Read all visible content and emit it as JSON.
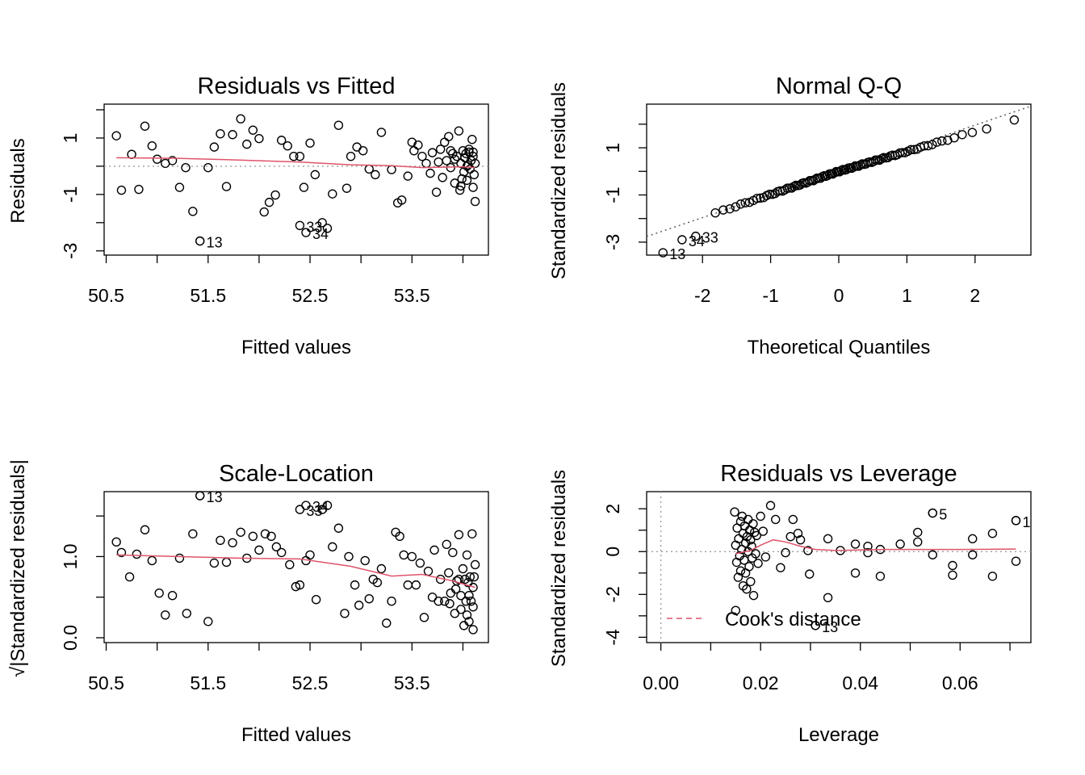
{
  "chart_data": [
    {
      "type": "scatter",
      "title": "Residuals vs Fitted",
      "xlabel": "Fitted values",
      "ylabel": "Residuals",
      "xlim": [
        50.48,
        54.25
      ],
      "ylim": [
        -3.15,
        2.2
      ],
      "x_ticks": [
        50.5,
        51.5,
        52.5,
        53.5
      ],
      "x_tick_labels": [
        "50.5",
        "51.5",
        "52.5",
        "53.5"
      ],
      "y_ticks": [
        -3,
        -1,
        1
      ],
      "y_tick_labels": [
        "-3",
        "-1",
        "1"
      ],
      "x_minor_ticks": [
        51.0,
        52.0,
        53.0,
        54.0
      ],
      "y_minor_ticks": [
        -2,
        0,
        2
      ],
      "reference_line": {
        "y": 0
      },
      "points": [
        [
          50.6,
          1.08
        ],
        [
          50.65,
          -0.85
        ],
        [
          50.75,
          0.42
        ],
        [
          50.82,
          -0.82
        ],
        [
          50.88,
          1.42
        ],
        [
          50.95,
          0.72
        ],
        [
          51.0,
          0.25
        ],
        [
          51.08,
          0.1
        ],
        [
          51.15,
          0.2
        ],
        [
          51.22,
          -0.75
        ],
        [
          51.28,
          -0.05
        ],
        [
          51.35,
          -1.6
        ],
        [
          51.42,
          -2.65
        ],
        [
          51.5,
          -0.05
        ],
        [
          51.56,
          0.68
        ],
        [
          51.62,
          1.15
        ],
        [
          51.68,
          -0.72
        ],
        [
          51.74,
          1.12
        ],
        [
          51.82,
          1.68
        ],
        [
          51.88,
          0.78
        ],
        [
          51.94,
          1.28
        ],
        [
          52.0,
          0.98
        ],
        [
          52.05,
          -1.62
        ],
        [
          52.1,
          -1.28
        ],
        [
          52.16,
          -1.02
        ],
        [
          52.22,
          0.92
        ],
        [
          52.28,
          0.72
        ],
        [
          52.34,
          0.35
        ],
        [
          52.4,
          0.35
        ],
        [
          52.44,
          -0.75
        ],
        [
          52.5,
          0.82
        ],
        [
          52.55,
          -0.3
        ],
        [
          52.62,
          -2.0
        ],
        [
          52.67,
          -2.2
        ],
        [
          52.72,
          -0.98
        ],
        [
          52.78,
          1.45
        ],
        [
          52.86,
          -0.78
        ],
        [
          52.9,
          0.35
        ],
        [
          52.96,
          0.68
        ],
        [
          53.02,
          0.55
        ],
        [
          53.08,
          -0.1
        ],
        [
          53.14,
          -0.3
        ],
        [
          53.2,
          1.2
        ],
        [
          53.3,
          -0.12
        ],
        [
          53.36,
          -1.3
        ],
        [
          53.4,
          -1.2
        ],
        [
          53.46,
          -0.35
        ],
        [
          53.5,
          0.85
        ],
        [
          53.52,
          0.55
        ],
        [
          53.56,
          0.75
        ],
        [
          53.6,
          0.35
        ],
        [
          53.64,
          0.1
        ],
        [
          53.68,
          -0.25
        ],
        [
          53.7,
          0.48
        ],
        [
          53.74,
          -0.92
        ],
        [
          53.76,
          0.15
        ],
        [
          53.78,
          0.6
        ],
        [
          53.8,
          -0.4
        ],
        [
          53.82,
          0.85
        ],
        [
          53.84,
          0.2
        ],
        [
          53.86,
          1.05
        ],
        [
          53.88,
          -0.05
        ],
        [
          53.9,
          0.45
        ],
        [
          53.92,
          -0.6
        ],
        [
          53.94,
          0.35
        ],
        [
          53.96,
          1.25
        ],
        [
          53.97,
          -0.85
        ],
        [
          53.98,
          0.1
        ],
        [
          54.0,
          0.55
        ],
        [
          54.01,
          -0.2
        ],
        [
          54.02,
          0.3
        ],
        [
          54.03,
          0.45
        ],
        [
          54.04,
          -0.5
        ],
        [
          54.05,
          0.05
        ],
        [
          54.06,
          0.5
        ],
        [
          54.07,
          -0.1
        ],
        [
          54.08,
          0.2
        ],
        [
          54.09,
          0.95
        ],
        [
          54.1,
          -0.75
        ],
        [
          54.1,
          0.35
        ],
        [
          54.11,
          -0.3
        ],
        [
          54.12,
          0.1
        ],
        [
          54.12,
          -1.25
        ],
        [
          53.98,
          -0.7
        ],
        [
          54.06,
          0.6
        ],
        [
          53.92,
          0.25
        ],
        [
          54.04,
          0.0
        ],
        [
          53.88,
          0.55
        ],
        [
          54.1,
          0.5
        ],
        [
          53.99,
          -0.45
        ]
      ],
      "labeled_points": [
        {
          "label": "13",
          "x": 51.42,
          "y": -2.65
        },
        {
          "label": "33",
          "x": 52.4,
          "y": -2.1
        },
        {
          "label": "34",
          "x": 52.46,
          "y": -2.35
        }
      ],
      "smooth_line": [
        [
          50.6,
          0.3
        ],
        [
          51.2,
          0.28
        ],
        [
          51.8,
          0.22
        ],
        [
          52.4,
          0.15
        ],
        [
          52.9,
          0.05
        ],
        [
          53.3,
          0.02
        ],
        [
          53.6,
          -0.05
        ],
        [
          54.0,
          -0.02
        ],
        [
          54.12,
          -0.05
        ]
      ]
    },
    {
      "type": "scatter",
      "title": "Normal Q-Q",
      "xlabel": "Theoretical Quantiles",
      "ylabel": "Standardized residuals",
      "xlim": [
        -2.82,
        2.82
      ],
      "ylim": [
        -3.55,
        2.85
      ],
      "x_ticks": [
        -2,
        -1,
        0,
        1,
        2
      ],
      "x_tick_labels": [
        "-2",
        "-1",
        "0",
        "1",
        "2"
      ],
      "y_ticks": [
        -3,
        -1,
        1
      ],
      "y_tick_labels": [
        "-3",
        "-1",
        "1"
      ],
      "y_minor_ticks": [
        -2,
        0,
        2
      ],
      "reference_line": {
        "intercept": 0.0,
        "slope": 0.98
      },
      "n_points": 100,
      "labeled_points": [
        {
          "label": "13",
          "x": -2.58,
          "y": -3.45
        },
        {
          "label": "34",
          "x": -2.3,
          "y": -2.9
        },
        {
          "label": "33",
          "x": -2.1,
          "y": -2.75
        }
      ]
    },
    {
      "type": "scatter",
      "title": "Scale-Location",
      "xlabel": "Fitted values",
      "ylabel": "√|Standardized residuals|",
      "xlim": [
        50.48,
        54.25
      ],
      "ylim": [
        -0.06,
        1.8
      ],
      "x_ticks": [
        50.5,
        51.5,
        52.5,
        53.5
      ],
      "x_tick_labels": [
        "50.5",
        "51.5",
        "52.5",
        "53.5"
      ],
      "y_ticks": [
        0.0,
        1.0
      ],
      "y_tick_labels": [
        "0.0",
        "1.0"
      ],
      "x_minor_ticks": [
        51.0,
        52.0,
        53.0,
        54.0
      ],
      "y_minor_ticks": [
        0.5,
        1.5
      ],
      "points": [
        [
          50.6,
          1.18
        ],
        [
          50.65,
          1.05
        ],
        [
          50.73,
          0.75
        ],
        [
          50.8,
          1.03
        ],
        [
          50.88,
          1.33
        ],
        [
          50.95,
          0.95
        ],
        [
          51.02,
          0.55
        ],
        [
          51.08,
          0.28
        ],
        [
          51.15,
          0.52
        ],
        [
          51.22,
          0.98
        ],
        [
          51.29,
          0.3
        ],
        [
          51.35,
          1.28
        ],
        [
          51.42,
          1.75
        ],
        [
          51.5,
          0.2
        ],
        [
          51.56,
          0.92
        ],
        [
          51.62,
          1.2
        ],
        [
          51.68,
          0.93
        ],
        [
          51.74,
          1.17
        ],
        [
          51.82,
          1.3
        ],
        [
          51.88,
          0.98
        ],
        [
          51.94,
          1.25
        ],
        [
          52.0,
          1.08
        ],
        [
          52.06,
          1.28
        ],
        [
          52.12,
          1.25
        ],
        [
          52.17,
          1.12
        ],
        [
          52.22,
          1.05
        ],
        [
          52.3,
          0.9
        ],
        [
          52.36,
          0.63
        ],
        [
          52.4,
          0.65
        ],
        [
          52.46,
          0.95
        ],
        [
          52.5,
          1.02
        ],
        [
          52.56,
          0.47
        ],
        [
          52.62,
          1.58
        ],
        [
          52.67,
          1.63
        ],
        [
          52.72,
          1.12
        ],
        [
          52.78,
          1.35
        ],
        [
          52.84,
          0.3
        ],
        [
          52.88,
          1.0
        ],
        [
          52.94,
          0.65
        ],
        [
          52.98,
          0.4
        ],
        [
          53.04,
          0.95
        ],
        [
          53.08,
          0.48
        ],
        [
          53.12,
          0.72
        ],
        [
          53.16,
          0.68
        ],
        [
          53.2,
          0.85
        ],
        [
          53.25,
          0.18
        ],
        [
          53.3,
          0.45
        ],
        [
          53.34,
          1.3
        ],
        [
          53.38,
          1.25
        ],
        [
          53.42,
          1.02
        ],
        [
          53.46,
          0.65
        ],
        [
          53.5,
          1.0
        ],
        [
          53.54,
          0.65
        ],
        [
          53.58,
          0.92
        ],
        [
          53.62,
          0.25
        ],
        [
          53.66,
          0.82
        ],
        [
          53.7,
          0.5
        ],
        [
          53.72,
          1.08
        ],
        [
          53.76,
          0.45
        ],
        [
          53.78,
          0.72
        ],
        [
          53.82,
          0.45
        ],
        [
          53.84,
          1.15
        ],
        [
          53.86,
          0.8
        ],
        [
          53.88,
          0.55
        ],
        [
          53.9,
          1.05
        ],
        [
          53.92,
          0.3
        ],
        [
          53.94,
          0.7
        ],
        [
          53.96,
          1.27
        ],
        [
          53.98,
          0.52
        ],
        [
          54.0,
          0.85
        ],
        [
          54.01,
          0.15
        ],
        [
          54.02,
          0.72
        ],
        [
          54.03,
          0.45
        ],
        [
          54.04,
          1.02
        ],
        [
          54.05,
          0.68
        ],
        [
          54.06,
          0.2
        ],
        [
          54.07,
          0.75
        ],
        [
          54.08,
          0.45
        ],
        [
          54.09,
          1.28
        ],
        [
          54.1,
          0.62
        ],
        [
          54.1,
          0.1
        ],
        [
          54.11,
          0.75
        ],
        [
          54.12,
          0.9
        ],
        [
          53.98,
          0.35
        ],
        [
          54.06,
          0.52
        ],
        [
          53.93,
          0.6
        ],
        [
          54.04,
          0.28
        ],
        [
          53.87,
          0.42
        ],
        [
          54.1,
          0.38
        ],
        [
          53.96,
          0.72
        ]
      ],
      "labeled_points": [
        {
          "label": "13",
          "x": 51.42,
          "y": 1.75
        },
        {
          "label": "34",
          "x": 52.46,
          "y": 1.63
        },
        {
          "label": "33",
          "x": 52.4,
          "y": 1.58
        }
      ],
      "smooth_line": [
        [
          50.6,
          1.02
        ],
        [
          51.2,
          1.0
        ],
        [
          51.8,
          0.98
        ],
        [
          52.4,
          0.97
        ],
        [
          52.9,
          0.88
        ],
        [
          53.3,
          0.76
        ],
        [
          53.6,
          0.78
        ],
        [
          53.9,
          0.7
        ],
        [
          54.12,
          0.62
        ]
      ]
    },
    {
      "type": "scatter",
      "title": "Residuals vs Leverage",
      "xlabel": "Leverage",
      "ylabel": "Standardized residuals",
      "xlim": [
        -0.00285,
        0.0742
      ],
      "ylim": [
        -4.25,
        2.8
      ],
      "x_ticks": [
        0.0,
        0.02,
        0.04,
        0.06
      ],
      "x_tick_labels": [
        "0.00",
        "0.02",
        "0.04",
        "0.06"
      ],
      "y_ticks": [
        -4,
        -2,
        0,
        2
      ],
      "y_tick_labels": [
        "-4",
        "-2",
        "0",
        "2"
      ],
      "x_minor_ticks": [
        0.01,
        0.03,
        0.05,
        0.07
      ],
      "y_minor_ticks": [
        -3,
        -1,
        1
      ],
      "reference_lines": [
        {
          "y": 0
        },
        {
          "x": 0
        }
      ],
      "legend": {
        "label": "Cook's distance",
        "position": "bottom-left"
      },
      "points": [
        [
          0.0148,
          1.85
        ],
        [
          0.015,
          -2.75
        ],
        [
          0.015,
          0.3
        ],
        [
          0.0152,
          -0.5
        ],
        [
          0.0153,
          1.1
        ],
        [
          0.0155,
          -1.2
        ],
        [
          0.0156,
          0.6
        ],
        [
          0.0158,
          -0.2
        ],
        [
          0.016,
          1.4
        ],
        [
          0.016,
          -0.9
        ],
        [
          0.0162,
          0.1
        ],
        [
          0.0163,
          1.65
        ],
        [
          0.0165,
          -1.6
        ],
        [
          0.0165,
          0.85
        ],
        [
          0.0167,
          -0.4
        ],
        [
          0.0168,
          1.2
        ],
        [
          0.017,
          0.4
        ],
        [
          0.017,
          -1.0
        ],
        [
          0.0172,
          -1.75
        ],
        [
          0.0173,
          0.7
        ],
        [
          0.0175,
          1.5
        ],
        [
          0.0175,
          0.0
        ],
        [
          0.0177,
          -0.7
        ],
        [
          0.0178,
          1.0
        ],
        [
          0.018,
          -1.4
        ],
        [
          0.018,
          0.55
        ],
        [
          0.0182,
          0.25
        ],
        [
          0.0183,
          -0.3
        ],
        [
          0.0185,
          1.3
        ],
        [
          0.0186,
          -2.05
        ],
        [
          0.0188,
          0.9
        ],
        [
          0.019,
          -0.1
        ],
        [
          0.0192,
          0.75
        ],
        [
          0.0195,
          -0.55
        ],
        [
          0.02,
          1.65
        ],
        [
          0.0205,
          0.95
        ],
        [
          0.021,
          -0.25
        ],
        [
          0.022,
          2.15
        ],
        [
          0.023,
          1.5
        ],
        [
          0.024,
          -0.75
        ],
        [
          0.025,
          -0.05
        ],
        [
          0.026,
          0.7
        ],
        [
          0.0265,
          1.5
        ],
        [
          0.0275,
          0.85
        ],
        [
          0.028,
          0.55
        ],
        [
          0.0295,
          0.05
        ],
        [
          0.0298,
          -1.05
        ],
        [
          0.031,
          -3.45
        ],
        [
          0.0335,
          0.6
        ],
        [
          0.0335,
          -2.15
        ],
        [
          0.036,
          0.05
        ],
        [
          0.039,
          0.35
        ],
        [
          0.039,
          -1.0
        ],
        [
          0.0415,
          0.25
        ],
        [
          0.0415,
          -0.05
        ],
        [
          0.044,
          -1.15
        ],
        [
          0.044,
          0.1
        ],
        [
          0.048,
          0.35
        ],
        [
          0.0515,
          0.9
        ],
        [
          0.0515,
          0.45
        ],
        [
          0.0545,
          1.8
        ],
        [
          0.0545,
          -0.15
        ],
        [
          0.0585,
          -0.65
        ],
        [
          0.0585,
          -1.1
        ],
        [
          0.0625,
          -0.15
        ],
        [
          0.0625,
          0.6
        ],
        [
          0.0665,
          -1.15
        ],
        [
          0.0665,
          0.85
        ],
        [
          0.0712,
          1.45
        ],
        [
          0.0712,
          -0.45
        ]
      ],
      "labeled_points": [
        {
          "label": "13",
          "x": 0.031,
          "y": -3.45
        },
        {
          "label": "5",
          "x": 0.0545,
          "y": 1.8
        },
        {
          "label": "1",
          "x": 0.0712,
          "y": 1.45
        }
      ],
      "smooth_line": [
        [
          0.015,
          -0.1
        ],
        [
          0.018,
          0.05
        ],
        [
          0.02,
          0.3
        ],
        [
          0.0225,
          0.55
        ],
        [
          0.025,
          0.45
        ],
        [
          0.028,
          0.25
        ],
        [
          0.031,
          0.1
        ],
        [
          0.035,
          0.05
        ],
        [
          0.045,
          0.1
        ],
        [
          0.06,
          0.1
        ],
        [
          0.0712,
          0.12
        ]
      ]
    }
  ]
}
